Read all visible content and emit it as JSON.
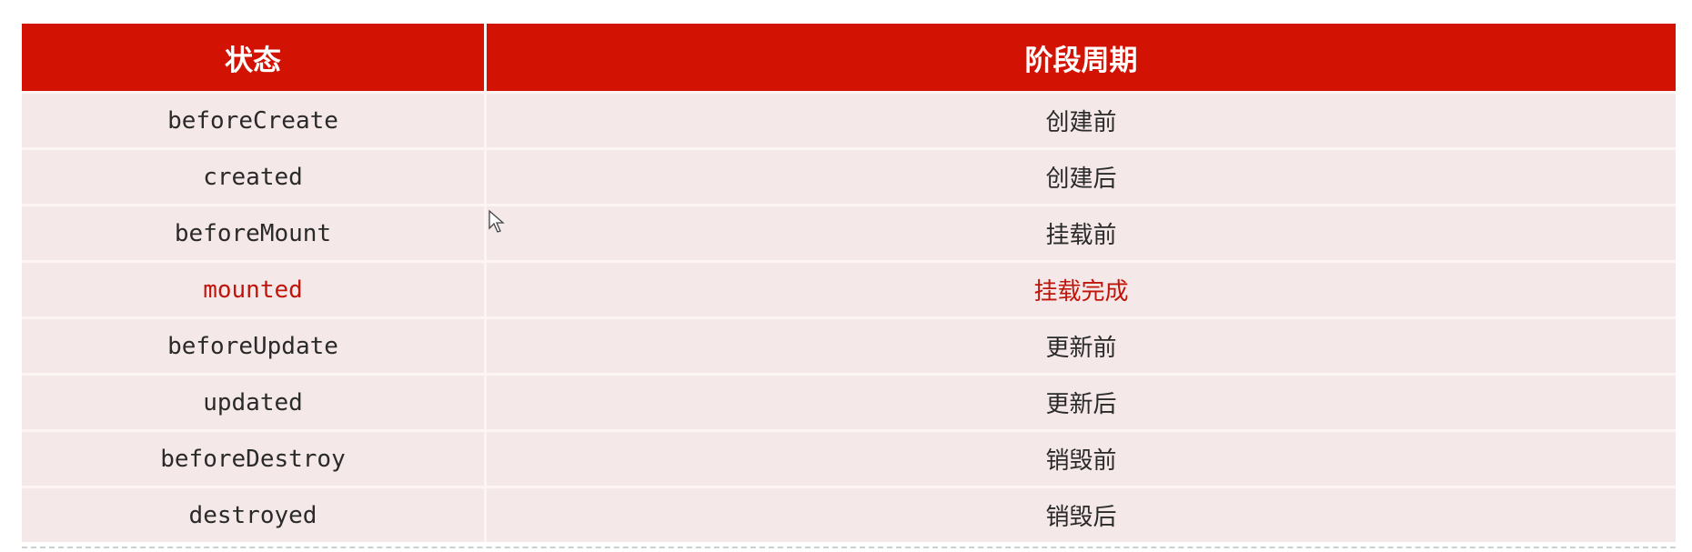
{
  "table": {
    "headers": [
      "状态",
      "阶段周期"
    ],
    "header_color": "#d21304",
    "highlight_color": "#c0150b",
    "rows": [
      {
        "state": "beforeCreate",
        "phase": "创建前",
        "highlighted": false
      },
      {
        "state": "created",
        "phase": "创建后",
        "highlighted": false
      },
      {
        "state": "beforeMount",
        "phase": "挂载前",
        "highlighted": false
      },
      {
        "state": "mounted",
        "phase": "挂载完成",
        "highlighted": true
      },
      {
        "state": "beforeUpdate",
        "phase": "更新前",
        "highlighted": false
      },
      {
        "state": "updated",
        "phase": "更新后",
        "highlighted": false
      },
      {
        "state": "beforeDestroy",
        "phase": "销毁前",
        "highlighted": false
      },
      {
        "state": "destroyed",
        "phase": "销毁后",
        "highlighted": false
      }
    ]
  }
}
